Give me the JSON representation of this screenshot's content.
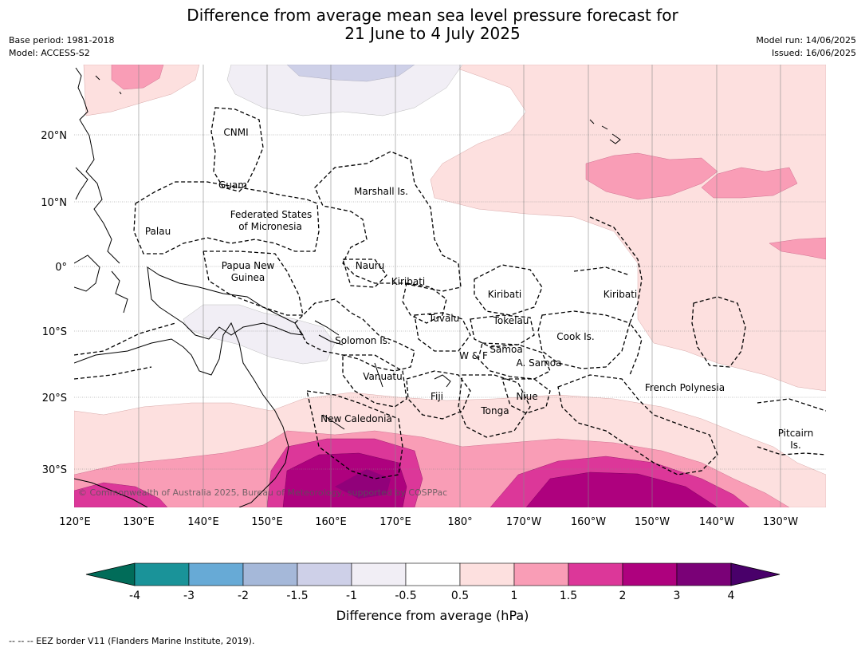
{
  "title_line1": "Difference from average mean sea level pressure forecast for",
  "title_line2": "21 June to 4 July 2025",
  "meta_left": [
    "Base period: 1981-2018",
    "Model: ACCESS-S2"
  ],
  "meta_right": [
    "Model run: 14/06/2025",
    "Issued: 16/06/2025"
  ],
  "lat_labels": [
    "20°N",
    "10°N",
    "0°",
    "10°S",
    "20°S",
    "30°S"
  ],
  "lon_labels": [
    "120°E",
    "130°E",
    "140°E",
    "150°E",
    "160°E",
    "170°E",
    "180°",
    "170°W",
    "160°W",
    "150°W",
    "140°W",
    "130°W"
  ],
  "copyright": "© Commonwealth of Australia 2025, Bureau of Meteorology, supported by COSPPac",
  "regions": [
    {
      "name": "CNMI"
    },
    {
      "name": "Guam"
    },
    {
      "name": "Marshall Is."
    },
    {
      "name": "Federated States"
    },
    {
      "name": "of Micronesia"
    },
    {
      "name": "Palau"
    },
    {
      "name": "Papua New"
    },
    {
      "name": "Guinea"
    },
    {
      "name": "Nauru"
    },
    {
      "name": "Kiribati"
    },
    {
      "name": "Kiribati"
    },
    {
      "name": "Kiribati"
    },
    {
      "name": "Tuvalu"
    },
    {
      "name": "Tokelau"
    },
    {
      "name": "Cook Is."
    },
    {
      "name": "Solomon Is."
    },
    {
      "name": "Samoa"
    },
    {
      "name": "W & F"
    },
    {
      "name": "A. Samoa"
    },
    {
      "name": "Vanuatu"
    },
    {
      "name": "Fiji"
    },
    {
      "name": "Niue"
    },
    {
      "name": "Tonga"
    },
    {
      "name": "French Polynesia"
    },
    {
      "name": "New Caledonia"
    },
    {
      "name": "Pitcairn"
    },
    {
      "name": "Is."
    }
  ],
  "colorbar": {
    "label": "Difference from average (hPa)",
    "ticks": [
      "-4",
      "-3",
      "-2",
      "-1.5",
      "-1",
      "-0.5",
      "0.5",
      "1",
      "1.5",
      "2",
      "3",
      "4"
    ],
    "colors": [
      "#1a9399",
      "#67aad6",
      "#a5b8d9",
      "#ced0e8",
      "#f1eef5",
      "#ffffff",
      "#fde0df",
      "#f99db6",
      "#dc3799",
      "#ae017e",
      "#7a0177"
    ],
    "under_color": "#016c59",
    "over_color": "#49006a"
  },
  "footnote": "--  --  -- EEZ border V11 (Flanders Marine Institute, 2019)."
}
